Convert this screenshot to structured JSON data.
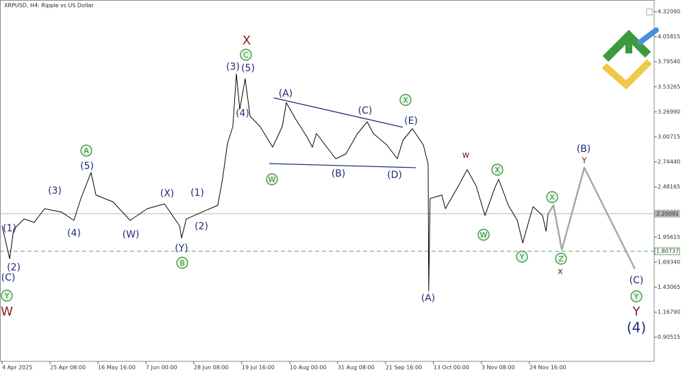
{
  "chart_data": {
    "type": "line",
    "title": "XRPUSD, H4: Ripple vs US Dollar",
    "xlim": [
      -0.9,
      290.2
    ],
    "ylim": [
      0.652,
      4.443
    ],
    "xticks": [
      {
        "value": 0,
        "label": "4 Apr 2025"
      },
      {
        "value": 21.333,
        "label": "25 Apr 08:00"
      },
      {
        "value": 42.667,
        "label": "16 May 16:00"
      },
      {
        "value": 64,
        "label": "7 Jun 00:00"
      },
      {
        "value": 85.333,
        "label": "28 Jun 08:00"
      },
      {
        "value": 106.667,
        "label": "19 Jul 16:00"
      },
      {
        "value": 128,
        "label": "10 Aug 00:00"
      },
      {
        "value": 149.333,
        "label": "31 Aug 08:00"
      },
      {
        "value": 170.667,
        "label": "21 Sep 16:00"
      },
      {
        "value": 192,
        "label": "13 Oct 00:00"
      },
      {
        "value": 213.333,
        "label": "3 Nov 08:00"
      },
      {
        "value": 234.667,
        "label": "24 Nov 16:00"
      }
    ],
    "yticks": [
      {
        "value": 4.3209,
        "label": "4.32090"
      },
      4.05815,
      {
        "value": 3.7954,
        "label": "3.79540"
      },
      3.53265,
      {
        "value": 3.2699,
        "label": "3.26990"
      },
      3.00715,
      {
        "value": 2.7444,
        "label": "2.74440"
      },
      2.48165,
      {
        "value": 2.2189,
        "label": "2.21890"
      },
      1.95615,
      {
        "value": 1.6934,
        "label": "1.69340"
      },
      1.43065,
      {
        "value": 1.1679,
        "label": "1.16790"
      },
      0.90515
    ],
    "hlines": [
      {
        "value": 2.20091,
        "color": "#b4b4b4",
        "dashed": false
      },
      {
        "value": 1.80737,
        "color": "#5aa05a",
        "dashed": true
      }
    ],
    "series": [
      {
        "color": "#000000",
        "width": 1,
        "x": [
          0,
          3.4,
          5.2,
          9.8,
          14.3,
          18.9,
          26.5,
          32,
          35.1,
          39.6,
          41.8,
          49.4,
          57,
          64.6,
          72.3,
          79,
          79.9,
          82,
          89,
          96,
          98.2,
          100.3,
          102.7,
          104.3,
          105.8,
          108.2,
          110.4,
          114.9,
          120.4,
          124.7,
          126.5,
          130.8,
          135.7,
          138.1,
          139.9,
          148.5,
          153,
          158.2,
          162.5,
          165.2,
          171.3,
          175.9,
          178.4,
          182.6,
          187.5,
          189.6,
          189.9,
          190.5,
          195.7,
          197.3,
          203.4,
          207,
          211,
          214.9,
          219.2,
          221,
          225.3,
          229.3,
          231.7,
          234.5,
          236.3,
          240.5,
          242.1,
          243
        ],
        "values": [
          2.074,
          1.729,
          2.038,
          2.146,
          2.11,
          2.253,
          2.218,
          2.131,
          2.361,
          2.634,
          2.397,
          2.325,
          2.131,
          2.253,
          2.304,
          2.074,
          1.945,
          2.146,
          2.218,
          2.289,
          2.576,
          2.935,
          3.115,
          3.668,
          3.294,
          3.617,
          3.223,
          3.115,
          2.899,
          3.115,
          3.366,
          3.187,
          3.007,
          2.899,
          3.043,
          2.777,
          2.828,
          3.043,
          3.165,
          3.043,
          2.921,
          2.777,
          2.971,
          3.093,
          2.921,
          2.72,
          1.392,
          2.361,
          2.397,
          2.253,
          2.505,
          2.663,
          2.49,
          2.182,
          2.469,
          2.562,
          2.289,
          2.131,
          1.894,
          2.131,
          2.275,
          2.182,
          2.016,
          2.201
        ]
      },
      {
        "color": "#1f2a7a",
        "width": 1.3,
        "x": [
          120.9,
          178.3
        ],
        "values": [
          3.416,
          3.108
        ]
      },
      {
        "color": "#1f2a7a",
        "width": 1.3,
        "x": [
          118.9,
          184.1
        ],
        "values": [
          2.727,
          2.684
        ]
      },
      {
        "color": "#a6a6a6",
        "width": 2.5,
        "x": [
          243,
          245.4,
          249.1,
          259.1,
          281.6
        ],
        "values": [
          2.201,
          2.289,
          1.823,
          2.684,
          1.622
        ]
      }
    ],
    "annotations": [
      {
        "text": "(1)",
        "color": "#1f2a7a"
      },
      {
        "text": "(2)",
        "color": "#1f2a7a"
      },
      {
        "text": "(C)",
        "color": "#1f2a7a"
      },
      {
        "text": "Y",
        "color": "#2a8a2a",
        "circled": true
      },
      {
        "text": "W",
        "color": "#8b1a1a"
      },
      {
        "text": "(3)",
        "color": "#1f2a7a"
      },
      {
        "text": "(4)",
        "color": "#1f2a7a"
      },
      {
        "text": "A",
        "color": "#2a8a2a",
        "circled": true
      },
      {
        "text": "(5)",
        "color": "#1f2a7a"
      },
      {
        "text": "(W)",
        "color": "#1f2a7a"
      },
      {
        "text": "(X)",
        "color": "#1f2a7a"
      },
      {
        "text": "(Y)",
        "color": "#1f2a7a"
      },
      {
        "text": "B",
        "color": "#2a8a2a",
        "circled": true
      },
      {
        "text": "(1)",
        "color": "#1f2a7a"
      },
      {
        "text": "(2)",
        "color": "#1f2a7a"
      },
      {
        "text": "X",
        "color": "#8b1a1a"
      },
      {
        "text": "C",
        "color": "#2a8a2a",
        "circled": true
      },
      {
        "text": "(3)",
        "color": "#1f2a7a"
      },
      {
        "text": "(5)",
        "color": "#1f2a7a"
      },
      {
        "text": "(4)",
        "color": "#1f2a7a"
      },
      {
        "text": "(A)",
        "color": "#1f2a7a"
      },
      {
        "text": "W",
        "color": "#2a8a2a",
        "circled": true
      },
      {
        "text": "(B)",
        "color": "#1f2a7a"
      },
      {
        "text": "(C)",
        "color": "#1f2a7a"
      },
      {
        "text": "X",
        "color": "#2a8a2a",
        "circled": true
      },
      {
        "text": "(E)",
        "color": "#1f2a7a"
      },
      {
        "text": "(D)",
        "color": "#1f2a7a"
      },
      {
        "text": "(A)",
        "color": "#1f2a7a"
      },
      {
        "text": "w",
        "color": "#8b1a1a"
      },
      {
        "text": "X",
        "color": "#2a8a2a",
        "circled": true
      },
      {
        "text": "W",
        "color": "#2a8a2a",
        "circled": true
      },
      {
        "text": "Y",
        "color": "#2a8a2a",
        "circled": true
      },
      {
        "text": "X",
        "color": "#2a8a2a",
        "circled": true
      },
      {
        "text": "Z",
        "color": "#2a8a2a",
        "circled": true
      },
      {
        "text": "x",
        "color": "#8b1a1a"
      },
      {
        "text": "(B)",
        "color": "#1f2a7a"
      },
      {
        "text": "Y",
        "color": "#8b1a1a"
      },
      {
        "text": "(C)",
        "color": "#1f2a7a"
      },
      {
        "text": "Y",
        "color": "#2a8a2a",
        "circled": true
      },
      {
        "text": "Y",
        "color": "#8b1a1a"
      },
      {
        "text": "(4)",
        "color": "#1f2a7a"
      }
    ]
  }
}
